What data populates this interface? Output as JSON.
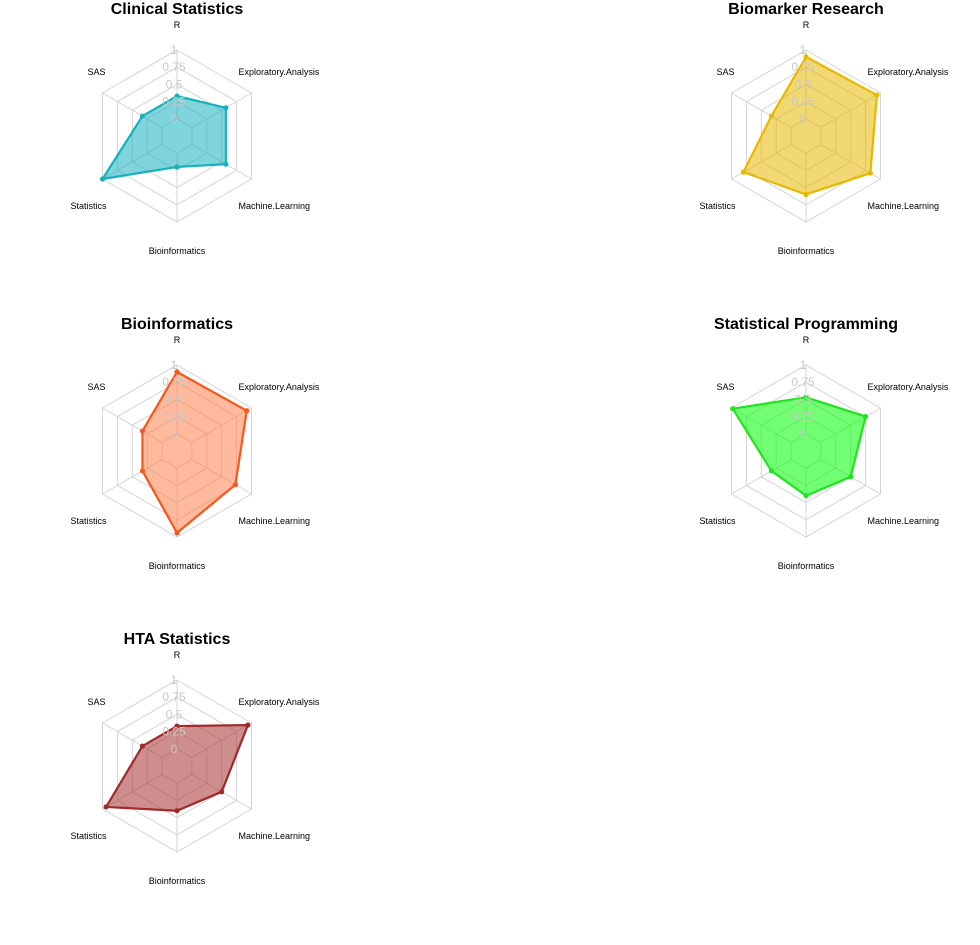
{
  "chart_data": [
    {
      "type": "radar",
      "title": "Clinical Statistics",
      "axes": [
        "R",
        "Exploratory.Analysis",
        "Machine.Learning",
        "Bioinformatics",
        "Statistics",
        "SAS"
      ],
      "ticks": [
        "0",
        "0.25",
        "0.5",
        "0.75",
        "1"
      ],
      "range": [
        0,
        1
      ],
      "values": [
        0.33,
        0.57,
        0.57,
        0.2,
        1.0,
        0.33
      ],
      "color": "#17b0bd",
      "fill": "#17b0bd"
    },
    {
      "type": "radar",
      "title": "Biomarker Research",
      "axes": [
        "R",
        "Exploratory.Analysis",
        "Machine.Learning",
        "Bioinformatics",
        "Statistics",
        "SAS"
      ],
      "ticks": [
        "0",
        "0.25",
        "0.5",
        "0.75",
        "1"
      ],
      "range": [
        0,
        1
      ],
      "values": [
        0.9,
        0.94,
        0.83,
        0.6,
        0.8,
        0.33
      ],
      "color": "#e6b800",
      "fill": "#e6b800"
    },
    {
      "type": "radar",
      "title": "Bioinformatics",
      "axes": [
        "R",
        "Exploratory.Analysis",
        "Machine.Learning",
        "Bioinformatics",
        "Statistics",
        "SAS"
      ],
      "ticks": [
        "0",
        "0.25",
        "0.5",
        "0.75",
        "1"
      ],
      "range": [
        0,
        1
      ],
      "values": [
        0.9,
        0.92,
        0.73,
        0.94,
        0.33,
        0.33
      ],
      "color": "#f5581c",
      "fill": "#ff7f4d"
    },
    {
      "type": "radar",
      "title": "Statistical Programming",
      "axes": [
        "R",
        "Exploratory.Analysis",
        "Machine.Learning",
        "Bioinformatics",
        "Statistics",
        "SAS"
      ],
      "ticks": [
        "0",
        "0.25",
        "0.5",
        "0.75",
        "1"
      ],
      "range": [
        0,
        1
      ],
      "values": [
        0.53,
        0.75,
        0.5,
        0.4,
        0.33,
        0.98
      ],
      "color": "#1fe51f",
      "fill": "#00ff00"
    },
    {
      "type": "radar",
      "title": "HTA Statistics",
      "axes": [
        "R",
        "Exploratory.Analysis",
        "Machine.Learning",
        "Bioinformatics",
        "Statistics",
        "SAS"
      ],
      "ticks": [
        "0",
        "0.25",
        "0.5",
        "0.75",
        "1"
      ],
      "range": [
        0,
        1
      ],
      "values": [
        0.33,
        0.94,
        0.5,
        0.4,
        0.94,
        0.33
      ],
      "color": "#9e2a2a",
      "fill": "#a83232"
    }
  ]
}
